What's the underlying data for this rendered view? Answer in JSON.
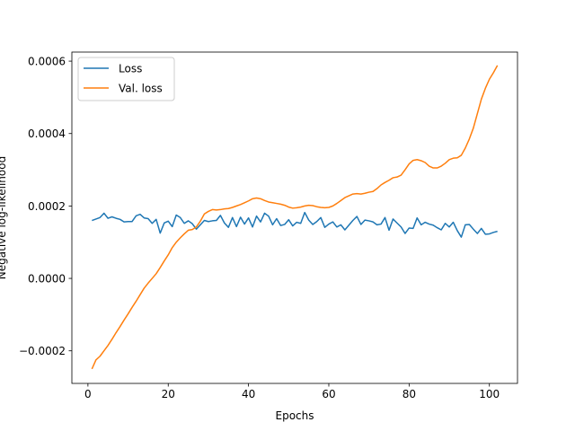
{
  "chart_data": {
    "type": "line",
    "title": "",
    "xlabel": "Epochs",
    "ylabel": "Negative log-likelihood",
    "xlim": [
      -4,
      107
    ],
    "ylim": [
      -0.00029,
      0.000625
    ],
    "xticks": [
      0,
      20,
      40,
      60,
      80,
      100
    ],
    "xtick_labels": [
      "0",
      "20",
      "40",
      "60",
      "80",
      "100"
    ],
    "yticks": [
      -0.0002,
      0.0,
      0.0002,
      0.0004,
      0.0006
    ],
    "ytick_labels": [
      "−0.0002",
      "0.0000",
      "0.0002",
      "0.0004",
      "0.0006"
    ],
    "grid": false,
    "legend_position": "upper-left",
    "series": [
      {
        "name": "Loss",
        "color": "#1f77b4",
        "x": [
          1,
          2,
          3,
          4,
          5,
          6,
          7,
          8,
          9,
          10,
          11,
          12,
          13,
          14,
          15,
          16,
          17,
          18,
          19,
          20,
          21,
          22,
          23,
          24,
          25,
          26,
          27,
          28,
          29,
          30,
          31,
          32,
          33,
          34,
          35,
          36,
          37,
          38,
          39,
          40,
          41,
          42,
          43,
          44,
          45,
          46,
          47,
          48,
          49,
          50,
          51,
          52,
          53,
          54,
          55,
          56,
          57,
          58,
          59,
          60,
          61,
          62,
          63,
          64,
          65,
          66,
          67,
          68,
          69,
          70,
          71,
          72,
          73,
          74,
          75,
          76,
          77,
          78,
          79,
          80,
          81,
          82,
          83,
          84,
          85,
          86,
          87,
          88,
          89,
          90,
          91,
          92,
          93,
          94,
          95,
          96,
          97,
          98,
          99,
          100,
          101,
          102
        ],
        "y": [
          0.00016,
          0.000164,
          0.000168,
          0.00018,
          0.000166,
          0.00017,
          0.000166,
          0.000163,
          0.000156,
          0.000157,
          0.000157,
          0.000173,
          0.000177,
          0.000167,
          0.000165,
          0.000152,
          0.000163,
          0.000125,
          0.000153,
          0.000158,
          0.000143,
          0.000175,
          0.000168,
          0.000152,
          0.000159,
          0.000151,
          0.000136,
          0.000148,
          0.00016,
          0.000157,
          0.000159,
          0.00016,
          0.000174,
          0.000153,
          0.000141,
          0.000168,
          0.000143,
          0.000169,
          0.00015,
          0.000167,
          0.000142,
          0.000172,
          0.000156,
          0.00018,
          0.000172,
          0.000148,
          0.000165,
          0.000146,
          0.000149,
          0.000162,
          0.000145,
          0.000155,
          0.000152,
          0.000182,
          0.000161,
          0.000149,
          0.000157,
          0.000168,
          0.000141,
          0.00015,
          0.000156,
          0.000142,
          0.000148,
          0.000134,
          0.000147,
          0.00016,
          0.000171,
          0.000149,
          0.000161,
          0.000159,
          0.000156,
          0.000148,
          0.00015,
          0.000168,
          0.000133,
          0.000164,
          0.000153,
          0.000142,
          0.000124,
          0.000139,
          0.000138,
          0.000167,
          0.000148,
          0.000155,
          0.00015,
          0.000147,
          0.00014,
          0.000134,
          0.000152,
          0.000142,
          0.000155,
          0.000132,
          0.000114,
          0.000148,
          0.000149,
          0.000136,
          0.000124,
          0.000138,
          0.000122,
          0.000123,
          0.000127,
          0.00013
        ]
      },
      {
        "name": "Val. loss",
        "color": "#ff7f0e",
        "x": [
          1,
          2,
          3,
          4,
          5,
          6,
          7,
          8,
          9,
          10,
          11,
          12,
          13,
          14,
          15,
          16,
          17,
          18,
          19,
          20,
          21,
          22,
          23,
          24,
          25,
          26,
          27,
          28,
          29,
          30,
          31,
          32,
          33,
          34,
          35,
          36,
          37,
          38,
          39,
          40,
          41,
          42,
          43,
          44,
          45,
          46,
          47,
          48,
          49,
          50,
          51,
          52,
          53,
          54,
          55,
          56,
          57,
          58,
          59,
          60,
          61,
          62,
          63,
          64,
          65,
          66,
          67,
          68,
          69,
          70,
          71,
          72,
          73,
          74,
          75,
          76,
          77,
          78,
          79,
          80,
          81,
          82,
          83,
          84,
          85,
          86,
          87,
          88,
          89,
          90,
          91,
          92,
          93,
          94,
          95,
          96,
          97,
          98,
          99,
          100,
          101,
          102
        ],
        "y": [
          -0.00025,
          -0.000225,
          -0.000215,
          -0.0002,
          -0.000185,
          -0.000168,
          -0.00015,
          -0.000133,
          -0.000115,
          -9.8e-05,
          -8e-05,
          -6.3e-05,
          -4.5e-05,
          -2.7e-05,
          -1.3e-05,
          0.0,
          1.3e-05,
          3e-05,
          4.8e-05,
          6.5e-05,
          8.5e-05,
          0.0001,
          0.000112,
          0.000123,
          0.000133,
          0.000135,
          0.000142,
          0.000158,
          0.000178,
          0.000185,
          0.00019,
          0.000189,
          0.00019,
          0.000192,
          0.000193,
          0.000196,
          0.0002,
          0.000204,
          0.000209,
          0.000214,
          0.00022,
          0.000222,
          0.00022,
          0.000215,
          0.000211,
          0.000209,
          0.000207,
          0.000205,
          0.000202,
          0.000197,
          0.000194,
          0.000195,
          0.000197,
          0.0002,
          0.000202,
          0.000201,
          0.000198,
          0.000196,
          0.000195,
          0.000196,
          0.0002,
          0.000207,
          0.000215,
          0.000223,
          0.000228,
          0.000233,
          0.000234,
          0.000233,
          0.000235,
          0.000238,
          0.00024,
          0.000248,
          0.000258,
          0.000265,
          0.000271,
          0.000278,
          0.00028,
          0.000285,
          0.0003,
          0.000316,
          0.000326,
          0.000328,
          0.000325,
          0.00032,
          0.00031,
          0.000305,
          0.000305,
          0.00031,
          0.000318,
          0.000328,
          0.000332,
          0.000333,
          0.00034,
          0.00036,
          0.000385,
          0.000415,
          0.000455,
          0.000495,
          0.000525,
          0.00055,
          0.000568,
          0.000588
        ]
      }
    ]
  }
}
